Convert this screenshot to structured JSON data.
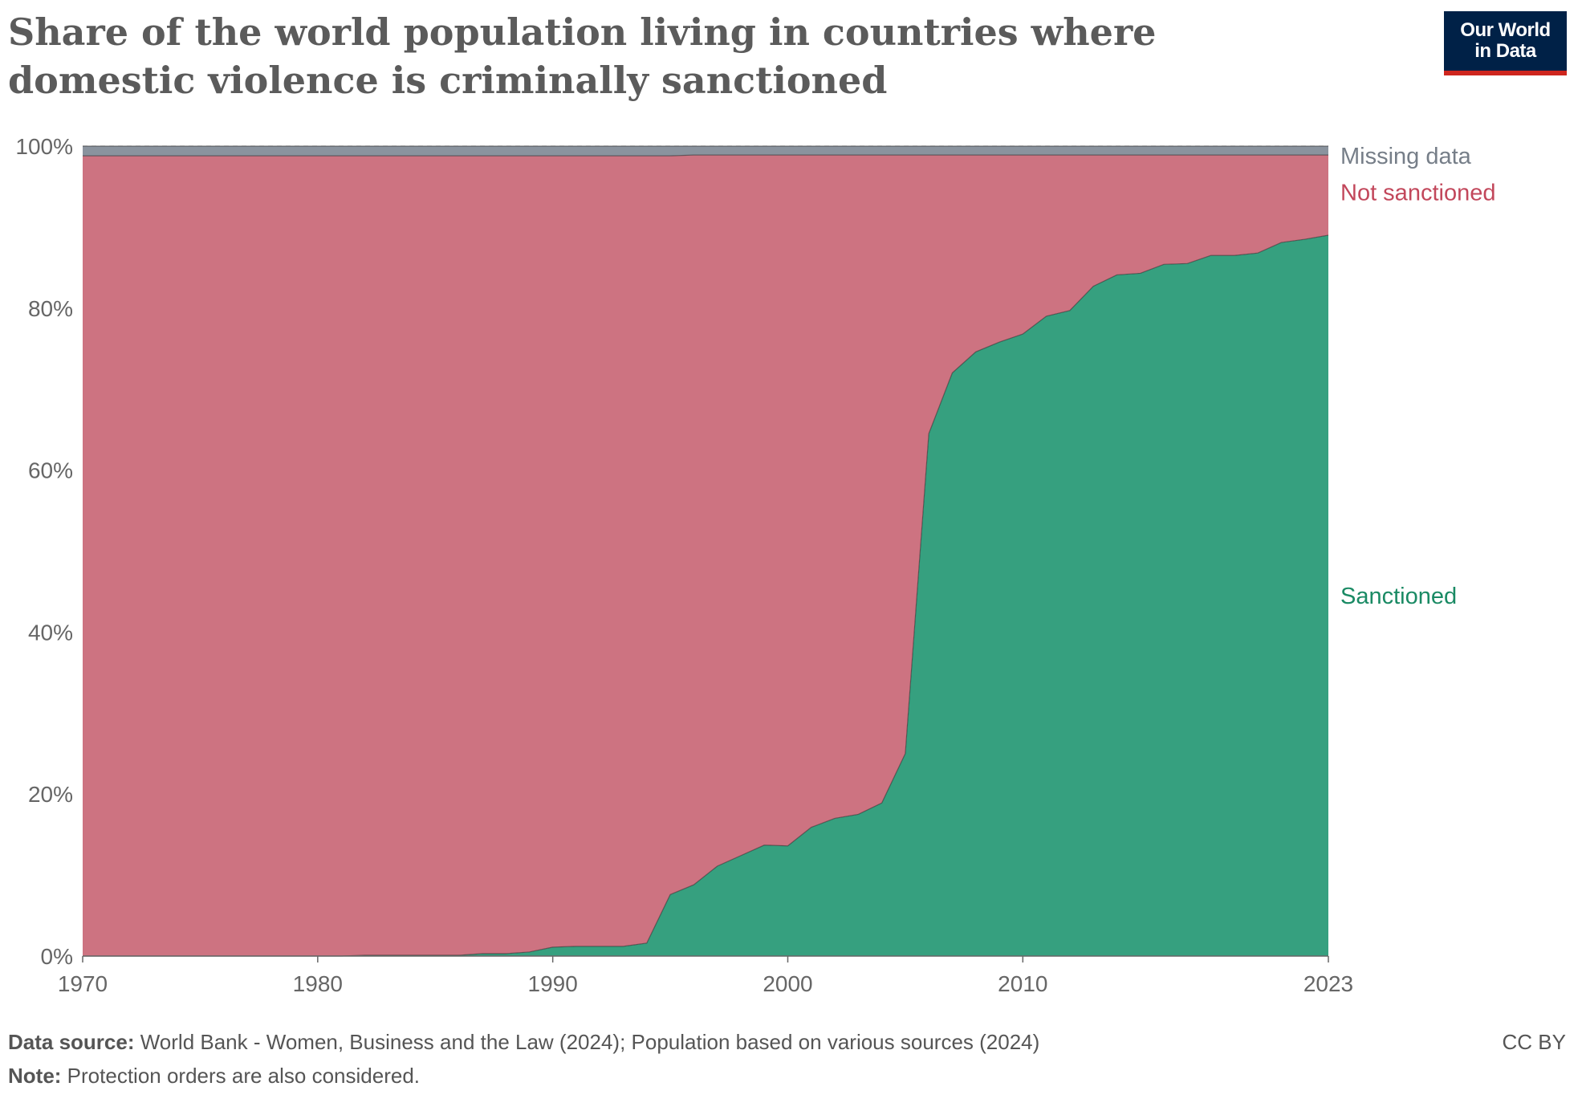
{
  "title": "Share of the world population living in countries where domestic violence is criminally sanctioned",
  "logo": {
    "text": "Our World\nin Data",
    "background": "#002147",
    "accent": "#ce261e"
  },
  "footer": {
    "source_label": "Data source:",
    "source_text": "World Bank - Women, Business and the Law (2024); Population based on various sources (2024)",
    "note_label": "Note:",
    "note_text": "Protection orders are also considered.",
    "license": "CC BY"
  },
  "chart_data": {
    "type": "area",
    "stacked": true,
    "x_ticks": [
      1970,
      1980,
      1990,
      2000,
      2010,
      2023
    ],
    "y_ticks": [
      "0%",
      "20%",
      "40%",
      "60%",
      "80%",
      "100%"
    ],
    "ylim": [
      0,
      100
    ],
    "xlim": [
      1970,
      2023
    ],
    "grid": "horizontal dashed",
    "legend": "labels at right end of series",
    "x": [
      1970,
      1971,
      1972,
      1973,
      1974,
      1975,
      1976,
      1977,
      1978,
      1979,
      1980,
      1981,
      1982,
      1983,
      1984,
      1985,
      1986,
      1987,
      1988,
      1989,
      1990,
      1991,
      1992,
      1993,
      1994,
      1995,
      1996,
      1997,
      1998,
      1999,
      2000,
      2001,
      2002,
      2003,
      2004,
      2005,
      2006,
      2007,
      2008,
      2009,
      2010,
      2011,
      2012,
      2013,
      2014,
      2015,
      2016,
      2017,
      2018,
      2019,
      2020,
      2021,
      2022,
      2023
    ],
    "series": [
      {
        "name": "Sanctioned",
        "color": "#36a07f",
        "values": [
          0,
          0,
          0,
          0,
          0,
          0,
          0,
          0,
          0,
          0,
          0,
          0,
          0.1,
          0.1,
          0.1,
          0.1,
          0.1,
          0.3,
          0.3,
          0.5,
          1.1,
          1.2,
          1.2,
          1.2,
          1.6,
          7.6,
          8.8,
          11.1,
          12.4,
          13.7,
          13.6,
          15.9,
          17.0,
          17.5,
          18.9,
          25.0,
          64.5,
          72.0,
          74.6,
          75.8,
          76.8,
          79.0,
          79.7,
          82.7,
          84.1,
          84.3,
          85.4,
          85.5,
          86.5,
          86.5,
          86.8,
          88.1,
          88.5,
          89.0
        ]
      },
      {
        "name": "Not sanctioned",
        "color": "#cd7381",
        "values": [
          98.8,
          98.8,
          98.8,
          98.8,
          98.8,
          98.8,
          98.8,
          98.8,
          98.8,
          98.8,
          98.8,
          98.8,
          98.7,
          98.7,
          98.7,
          98.7,
          98.7,
          98.5,
          98.5,
          98.3,
          97.7,
          97.6,
          97.6,
          97.6,
          97.2,
          91.2,
          90.1,
          87.8,
          86.5,
          85.2,
          85.3,
          83.0,
          81.9,
          81.4,
          80.0,
          73.9,
          34.4,
          26.9,
          24.3,
          23.1,
          22.1,
          19.9,
          19.2,
          16.2,
          14.8,
          14.6,
          13.5,
          13.4,
          12.4,
          12.4,
          12.1,
          10.8,
          10.4,
          9.9
        ]
      },
      {
        "name": "Missing data",
        "color": "#8a939e",
        "values": [
          1.2,
          1.2,
          1.2,
          1.2,
          1.2,
          1.2,
          1.2,
          1.2,
          1.2,
          1.2,
          1.2,
          1.2,
          1.2,
          1.2,
          1.2,
          1.2,
          1.2,
          1.2,
          1.2,
          1.2,
          1.2,
          1.2,
          1.2,
          1.2,
          1.2,
          1.2,
          1.1,
          1.1,
          1.1,
          1.1,
          1.1,
          1.1,
          1.1,
          1.1,
          1.1,
          1.1,
          1.1,
          1.1,
          1.1,
          1.1,
          1.1,
          1.1,
          1.1,
          1.1,
          1.1,
          1.1,
          1.1,
          1.1,
          1.1,
          1.1,
          1.1,
          1.1,
          1.1,
          1.1
        ]
      }
    ],
    "label_colors": {
      "Missing data": "#767e88",
      "Not sanctioned": "#c2475b",
      "Sanctioned": "#1a8a64"
    },
    "axis_color": "#666666",
    "grid_color": "#dddddd"
  }
}
